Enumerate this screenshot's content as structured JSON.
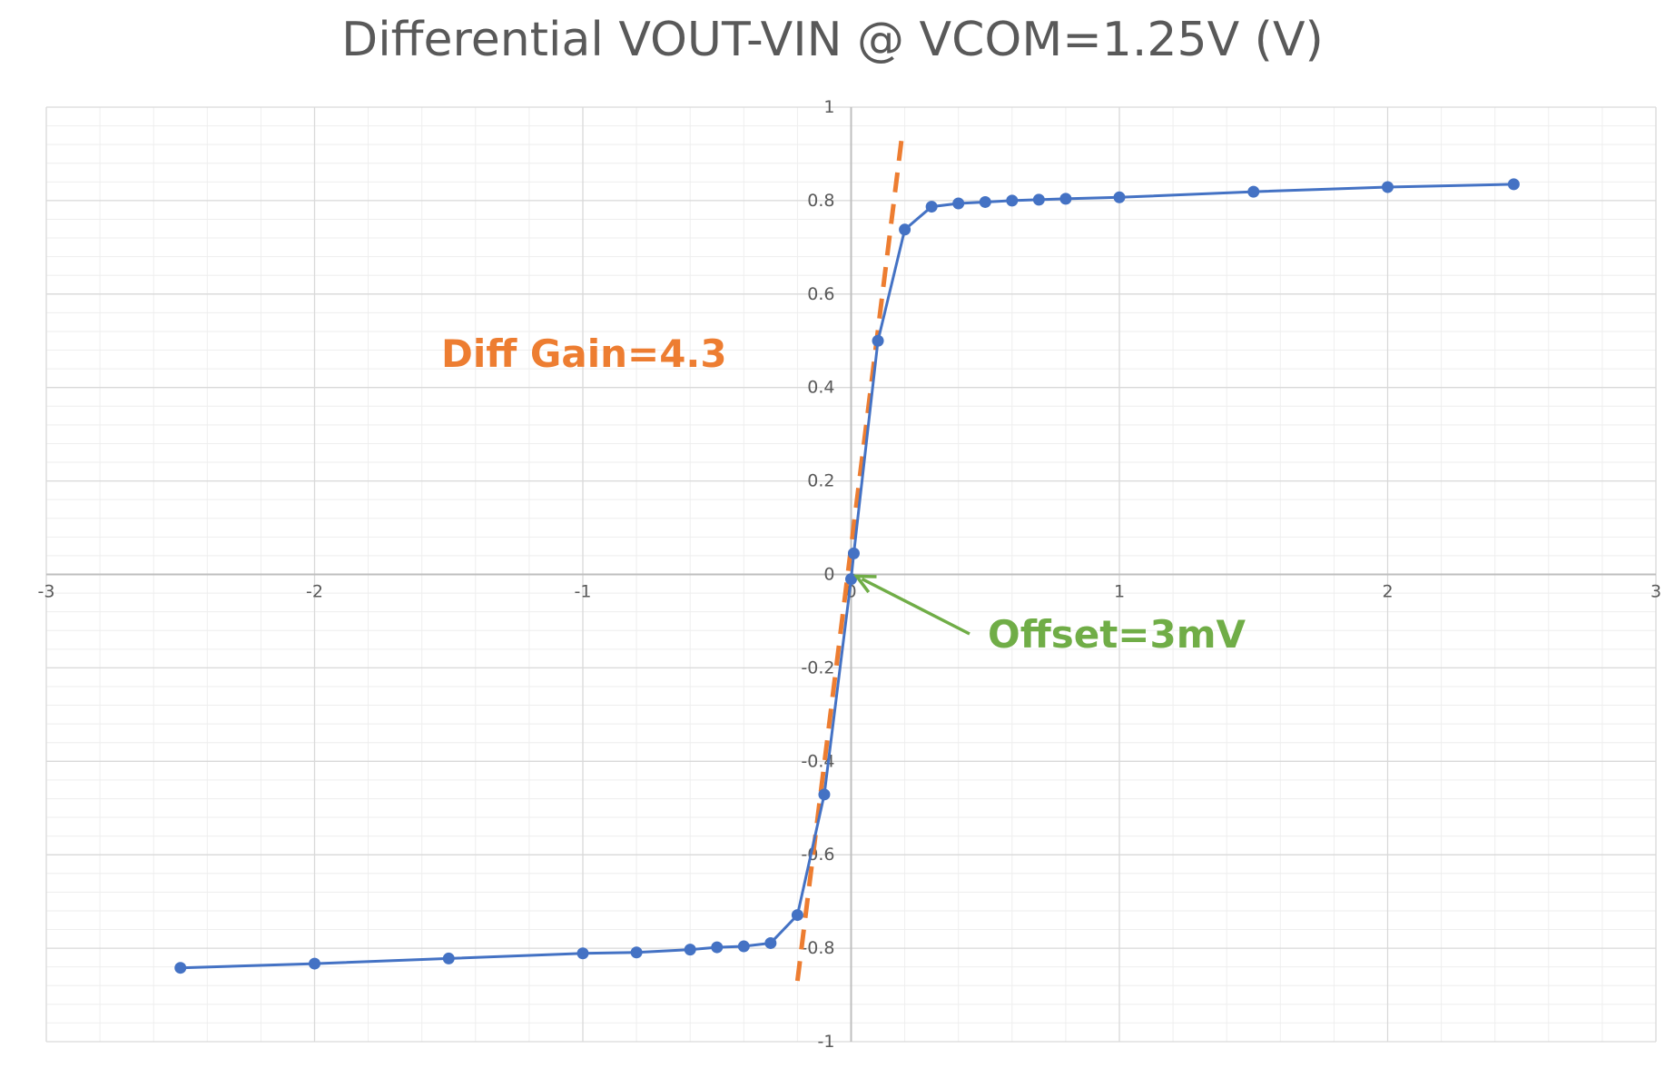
{
  "chart_data": {
    "type": "scatter",
    "title": "Differential VOUT-VIN @ VCOM=1.25V  (V)",
    "xlabel": "",
    "ylabel": "",
    "xlim": [
      -3,
      3
    ],
    "ylim": [
      -1,
      1
    ],
    "x_ticks": [
      -3,
      -2,
      -1,
      0,
      1,
      2,
      3
    ],
    "y_ticks": [
      -1,
      -0.8,
      -0.6,
      -0.4,
      -0.2,
      0,
      0.2,
      0.4,
      0.6,
      0.8,
      1
    ],
    "x_minor_step": 0.2,
    "y_minor_step": 0.04,
    "grid": true,
    "legend": "none",
    "series": [
      {
        "color": "#4472c4",
        "style": "line-with-markers",
        "points": [
          [
            -2.5,
            -0.842
          ],
          [
            -2.0,
            -0.833
          ],
          [
            -1.5,
            -0.822
          ],
          [
            -1.0,
            -0.811
          ],
          [
            -0.8,
            -0.809
          ],
          [
            -0.6,
            -0.803
          ],
          [
            -0.5,
            -0.798
          ],
          [
            -0.4,
            -0.796
          ],
          [
            -0.3,
            -0.789
          ],
          [
            -0.2,
            -0.729
          ],
          [
            -0.1,
            -0.471
          ],
          [
            0.0,
            -0.01
          ],
          [
            0.01,
            0.045
          ],
          [
            0.1,
            0.5
          ],
          [
            0.2,
            0.738
          ],
          [
            0.3,
            0.787
          ],
          [
            0.4,
            0.794
          ],
          [
            0.5,
            0.797
          ],
          [
            0.6,
            0.8
          ],
          [
            0.7,
            0.802
          ],
          [
            0.8,
            0.804
          ],
          [
            1.0,
            0.807
          ],
          [
            1.5,
            0.819
          ],
          [
            2.0,
            0.829
          ],
          [
            2.47,
            0.835
          ]
        ]
      }
    ],
    "trendline": {
      "color": "#ed7d31",
      "style": "dashed",
      "points": [
        [
          -0.2,
          -0.87
        ],
        [
          0.19,
          0.94
        ]
      ]
    },
    "annotations": {
      "gain": {
        "text": "Diff Gain=4.3",
        "color": "#ed7d31"
      },
      "offset": {
        "text": "Offset=3mV",
        "color": "#70ad47",
        "arrow_target": [
          0.0,
          0.0
        ]
      }
    },
    "colors": {
      "grid_major": "#d9d9d9",
      "grid_minor": "#eeeeee",
      "axis": "#bfbfbf",
      "tick_text": "#595959"
    }
  }
}
